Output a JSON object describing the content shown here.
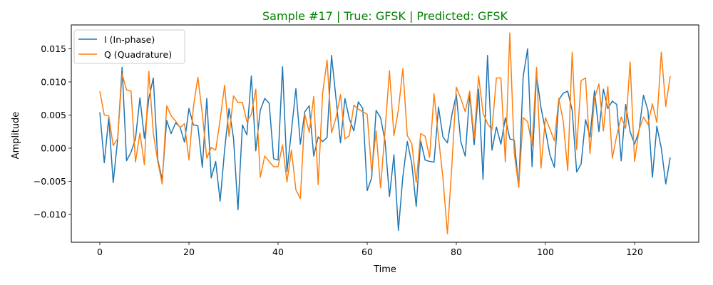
{
  "chart_data": {
    "type": "line",
    "title": "Sample #17 | True: GFSK | Predicted: GFSK",
    "title_color": "#008000",
    "xlabel": "Time",
    "ylabel": "Amplitude",
    "xlim": [
      -6.4,
      134.4
    ],
    "ylim": [
      -0.0142,
      0.0186
    ],
    "xticks": [
      0,
      20,
      40,
      60,
      80,
      100,
      120
    ],
    "xtick_labels": [
      "0",
      "20",
      "40",
      "60",
      "80",
      "100",
      "120"
    ],
    "yticks": [
      -0.01,
      -0.005,
      0.0,
      0.005,
      0.01,
      0.015
    ],
    "ytick_labels": [
      "−0.010",
      "−0.005",
      "0.000",
      "0.005",
      "0.010",
      "0.015"
    ],
    "grid": false,
    "legend_position": "upper-left",
    "series": [
      {
        "name": "I (In-phase)",
        "color": "#1f77b4",
        "values": [
          0.0054,
          -0.0022,
          0.0046,
          -0.0052,
          0.0013,
          0.0122,
          -0.0019,
          -0.0006,
          0.0014,
          0.0076,
          0.0015,
          0.0075,
          0.0106,
          -0.0017,
          -0.0048,
          0.0042,
          0.0022,
          0.0038,
          0.0032,
          0.0009,
          0.006,
          0.0035,
          0.0034,
          -0.0029,
          0.0075,
          -0.0045,
          -0.002,
          -0.008,
          -0.0003,
          0.006,
          0.0015,
          -0.0093,
          0.0035,
          0.002,
          0.0109,
          -0.0004,
          0.0057,
          0.0075,
          0.0068,
          -0.0016,
          -0.0018,
          0.0123,
          -0.0035,
          0.0026,
          0.009,
          0.0006,
          0.0055,
          0.0064,
          -0.0012,
          0.0017,
          0.001,
          0.0016,
          0.014,
          0.0075,
          0.0008,
          0.0075,
          0.0044,
          0.0026,
          0.007,
          0.006,
          -0.0064,
          -0.0045,
          0.0057,
          0.0046,
          0.0011,
          -0.0073,
          -0.001,
          -0.0124,
          -0.0043,
          0.001,
          -0.0023,
          -0.0088,
          0.0011,
          -0.0018,
          -0.002,
          -0.0021,
          0.0062,
          0.0017,
          0.0008,
          0.005,
          0.0081,
          0.001,
          -0.0012,
          0.0082,
          0.0005,
          0.0089,
          -0.0047,
          0.014,
          -0.0003,
          0.0032,
          0.0006,
          0.0046,
          0.0014,
          0.0012,
          -0.0059,
          0.0108,
          0.015,
          -0.0028,
          0.0111,
          0.0061,
          0.0027,
          -0.001,
          -0.0029,
          0.0073,
          0.0083,
          0.0086,
          0.0057,
          -0.0036,
          -0.0024,
          0.0043,
          0.0017,
          0.0087,
          0.0025,
          0.0089,
          0.006,
          0.0071,
          0.0066,
          -0.0019,
          0.0066,
          0.0025,
          0.0006,
          0.0026,
          0.008,
          0.0057,
          -0.0044,
          0.0033,
          0.0,
          -0.0054,
          -0.0014
        ]
      },
      {
        "name": "Q (Quadrature)",
        "color": "#ff7f0e",
        "values": [
          0.0086,
          0.005,
          0.0049,
          0.0004,
          0.0014,
          0.0112,
          0.0088,
          0.0086,
          -0.0021,
          0.0023,
          -0.0025,
          0.0116,
          0.0023,
          -0.002,
          -0.0054,
          0.0064,
          0.0049,
          0.0041,
          0.0031,
          0.0037,
          -0.0018,
          0.0062,
          0.0107,
          0.0052,
          -0.0015,
          0.0001,
          -0.0003,
          0.0043,
          0.0095,
          0.0018,
          0.0079,
          0.0069,
          0.0069,
          0.004,
          0.0051,
          0.0089,
          -0.0044,
          -0.0012,
          -0.002,
          -0.0028,
          -0.0028,
          0.0005,
          -0.0051,
          -0.0003,
          -0.0063,
          -0.0076,
          0.0051,
          0.0024,
          0.0078,
          -0.0055,
          0.0083,
          0.0133,
          0.0023,
          0.0046,
          0.0081,
          0.0014,
          0.0019,
          0.0065,
          0.0059,
          0.0055,
          0.0051,
          -0.0036,
          0.0026,
          -0.006,
          0.0026,
          0.0117,
          0.0019,
          0.0058,
          0.012,
          0.0019,
          0.0007,
          -0.0052,
          0.0022,
          0.0018,
          -0.0014,
          0.0082,
          0.0016,
          -0.0045,
          -0.0129,
          -0.0026,
          0.0092,
          0.0075,
          0.0055,
          0.0086,
          0.0015,
          0.0109,
          0.0053,
          0.0037,
          0.0028,
          0.0106,
          0.0106,
          -0.0021,
          0.0174,
          -0.0007,
          -0.0059,
          0.0046,
          0.004,
          0.0004,
          0.0122,
          -0.003,
          0.0046,
          0.0029,
          0.0011,
          0.0075,
          0.004,
          -0.0034,
          0.0145,
          -0.0002,
          0.0102,
          0.0106,
          -0.0008,
          0.0075,
          0.0097,
          0.0026,
          0.0093,
          -0.0015,
          0.0019,
          0.0047,
          0.003,
          0.013,
          -0.002,
          0.0028,
          0.0047,
          0.0036,
          0.0067,
          0.0039,
          0.0145,
          0.0063,
          0.0109
        ]
      }
    ]
  }
}
